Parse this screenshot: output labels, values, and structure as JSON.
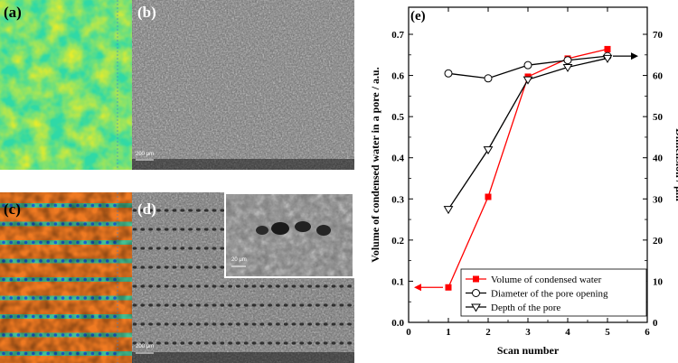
{
  "panels": {
    "a": {
      "label": "(a)"
    },
    "b": {
      "label": "(b)",
      "scale_bar": "200 μm"
    },
    "c": {
      "label": "(c)"
    },
    "d": {
      "label": "(d)",
      "scale_bar": "200 μm",
      "inset_scale_bar": "20 μm"
    }
  },
  "chart_data": {
    "type": "line",
    "panel_label": "(e)",
    "xlabel": "Scan number",
    "ylabel_left": "Volume of condensed water in a pore / a.u.",
    "ylabel_right": "Dimension / μm",
    "xlim": [
      0,
      6
    ],
    "ylim_left": [
      0,
      0.7
    ],
    "ylim_right": [
      0,
      70
    ],
    "x_ticks": [
      "0",
      "1",
      "2",
      "3",
      "4",
      "5",
      "6"
    ],
    "y_ticks_left": [
      "0.0",
      "0.1",
      "0.2",
      "0.3",
      "0.4",
      "0.5",
      "0.6",
      "0.7"
    ],
    "y_ticks_right": [
      "0",
      "10",
      "20",
      "30",
      "40",
      "50",
      "60",
      "70"
    ],
    "series": [
      {
        "name": "Volume of condensed water",
        "axis": "left",
        "color": "#ff0000",
        "marker": "square-filled",
        "x": [
          1,
          2,
          3,
          4,
          5
        ],
        "y": [
          0.085,
          0.305,
          0.597,
          0.641,
          0.664
        ]
      },
      {
        "name": "Diameter of the pore opening",
        "axis": "right",
        "color": "#000000",
        "marker": "circle-open",
        "x": [
          1,
          2,
          3,
          4,
          5
        ],
        "y": [
          60.5,
          59.3,
          62.5,
          63.7,
          64.7
        ]
      },
      {
        "name": "Depth of the pore",
        "axis": "right",
        "color": "#000000",
        "marker": "triangle-down-open",
        "x": [
          1,
          2,
          3,
          4,
          5
        ],
        "y": [
          27.5,
          42,
          59,
          62,
          64.2
        ]
      }
    ],
    "legend_position": "bottom-right",
    "arrows": [
      {
        "axis": "left",
        "direction": "left",
        "color": "#ff0000"
      },
      {
        "axis": "right",
        "direction": "right",
        "color": "#000000"
      }
    ]
  }
}
